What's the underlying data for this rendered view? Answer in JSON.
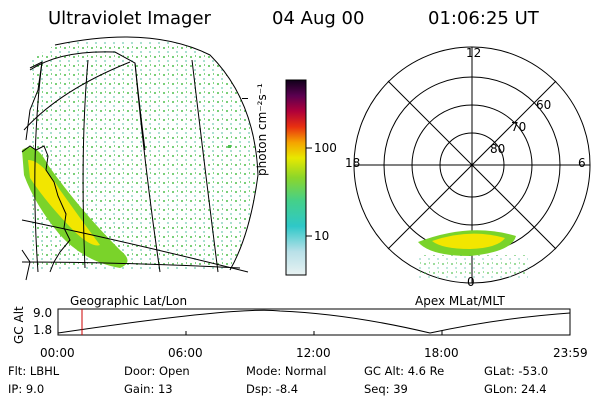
{
  "header": {
    "instrument": "Ultraviolet Imager",
    "date": "04 Aug 00",
    "time": "01:06:25 UT"
  },
  "colorbar": {
    "label": "photon cm⁻²s⁻¹",
    "ticks": [
      "100",
      "10"
    ]
  },
  "polar": {
    "mlt_labels": {
      "top": "12",
      "left": "18",
      "right": "6",
      "bottom": "0"
    },
    "lat_labels": [
      "60",
      "70",
      "80"
    ]
  },
  "panels": {
    "left_caption": "Geographic Lat/Lon",
    "right_caption": "Apex MLat/MLT"
  },
  "orbit": {
    "ylabel": "GC Alt",
    "yticks": [
      "9.0",
      "1.8"
    ],
    "xticks": [
      "00:00",
      "06:00",
      "12:00",
      "18:00",
      "23:59"
    ],
    "marker_time": "01:06"
  },
  "footer": {
    "flt_label": "Flt:",
    "flt_value": "LBHL",
    "ip_label": "IP:",
    "ip_value": "9.0",
    "door_label": "Door:",
    "door_value": "Open",
    "gain_label": "Gain:",
    "gain_value": "13",
    "mode_label": "Mode:",
    "mode_value": "Normal",
    "dsp_label": "Dsp:",
    "dsp_value": "-8.4",
    "gcalt_label": "GC Alt:",
    "gcalt_value": "4.6 Re",
    "seq_label": "Seq:",
    "seq_value": "39",
    "glat_label": "GLat:",
    "glat_value": "-53.0",
    "glon_label": "GLon:",
    "glon_value": "24.4"
  },
  "colors": {
    "bg": "#ffffff",
    "aurora_bright": "#f2e600",
    "aurora_mid": "#7ad32a",
    "aurora_low": "#2fc78a",
    "background_speckle": "#4fbf4f",
    "orbit_marker": "#cc0000"
  }
}
